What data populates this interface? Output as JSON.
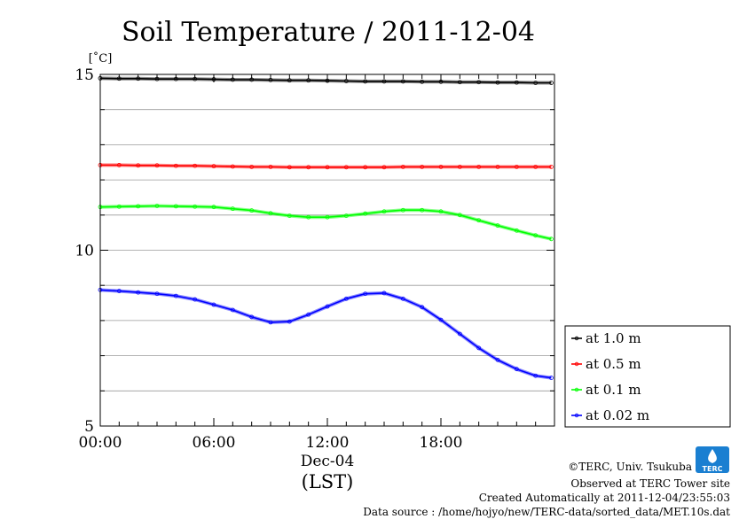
{
  "chart_data": {
    "type": "line",
    "title": "Soil Temperature / 2011-12-04",
    "ylabel": "[˚C]",
    "x_ticks": [
      "00:00",
      "06:00",
      "12:00",
      "18:00"
    ],
    "x_sublabel": "Dec-04",
    "x_unit": "(LST)",
    "xlim": [
      "00:00",
      "24:00"
    ],
    "ylim": [
      5,
      15
    ],
    "y_ticks": [
      "5",
      "10",
      "15"
    ],
    "y_minor_step": 1,
    "grid": true,
    "legend_position": "right, below plot top",
    "x": [
      "00:00",
      "01:00",
      "02:00",
      "03:00",
      "04:00",
      "05:00",
      "06:00",
      "07:00",
      "08:00",
      "09:00",
      "10:00",
      "11:00",
      "12:00",
      "13:00",
      "14:00",
      "15:00",
      "16:00",
      "17:00",
      "18:00",
      "19:00",
      "20:00",
      "21:00",
      "22:00",
      "23:00",
      "23:50"
    ],
    "series": [
      {
        "name": "at 1.0 m",
        "color": "#000000",
        "values": [
          14.89,
          14.88,
          14.88,
          14.87,
          14.87,
          14.87,
          14.86,
          14.85,
          14.85,
          14.84,
          14.83,
          14.83,
          14.82,
          14.81,
          14.8,
          14.8,
          14.8,
          14.79,
          14.79,
          14.78,
          14.78,
          14.77,
          14.77,
          14.76,
          14.76
        ]
      },
      {
        "name": "at 0.5 m",
        "color": "#ff0000",
        "values": [
          12.42,
          12.42,
          12.41,
          12.41,
          12.4,
          12.4,
          12.39,
          12.38,
          12.37,
          12.37,
          12.36,
          12.36,
          12.36,
          12.36,
          12.36,
          12.36,
          12.37,
          12.37,
          12.37,
          12.37,
          12.37,
          12.37,
          12.37,
          12.37,
          12.37
        ]
      },
      {
        "name": "at 0.1 m",
        "color": "#00ff00",
        "values": [
          11.23,
          11.24,
          11.25,
          11.26,
          11.25,
          11.24,
          11.23,
          11.18,
          11.13,
          11.05,
          10.98,
          10.94,
          10.94,
          10.98,
          11.04,
          11.1,
          11.14,
          11.14,
          11.1,
          11.0,
          10.85,
          10.7,
          10.56,
          10.42,
          10.32
        ]
      },
      {
        "name": "at 0.02 m",
        "color": "#0000ff",
        "values": [
          8.87,
          8.84,
          8.8,
          8.76,
          8.7,
          8.6,
          8.45,
          8.3,
          8.1,
          7.95,
          7.97,
          8.17,
          8.4,
          8.62,
          8.76,
          8.78,
          8.62,
          8.38,
          8.02,
          7.62,
          7.22,
          6.88,
          6.62,
          6.43,
          6.37
        ]
      }
    ]
  },
  "credits": {
    "copyright": "©TERC, Univ. Tsukuba",
    "observed": "Observed at TERC Tower site",
    "created": "Created Automatically at 2011-12-04/23:55:03",
    "source": "Data source : /home/hojyo/new/TERC-data/sorted_data/MET.10s.dat",
    "logo_text": "TERC",
    "logo_color": "#1a7fd1"
  }
}
